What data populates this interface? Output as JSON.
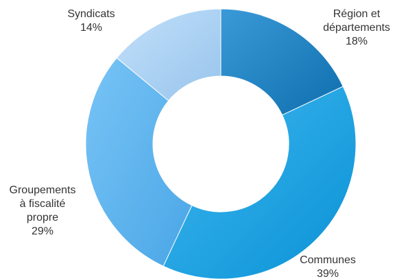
{
  "chart_data": {
    "type": "pie",
    "variant": "donut",
    "title": "",
    "start_angle_deg": 0,
    "direction": "clockwise",
    "slices": [
      {
        "label_lines": [
          "Région et",
          "départements"
        ],
        "value": 18,
        "value_label": "18%",
        "color": "#1a84c8",
        "color_light": "#3a9ad8",
        "color_dark": "#0f6fae"
      },
      {
        "label_lines": [
          "Communes"
        ],
        "value": 39,
        "value_label": "39%",
        "color": "#10a4e8",
        "color_light": "#3fb7ef",
        "color_dark": "#0a92d6"
      },
      {
        "label_lines": [
          "Groupements",
          "à fiscalité",
          "propre"
        ],
        "value": 29,
        "value_label": "29%",
        "color": "#5ab4f0",
        "color_light": "#78c4f6",
        "color_dark": "#4aa6e6"
      },
      {
        "label_lines": [
          "Syndicats"
        ],
        "value": 14,
        "value_label": "14%",
        "color": "#aad2f5",
        "color_light": "#c2e0fa",
        "color_dark": "#98c4ec"
      }
    ]
  }
}
